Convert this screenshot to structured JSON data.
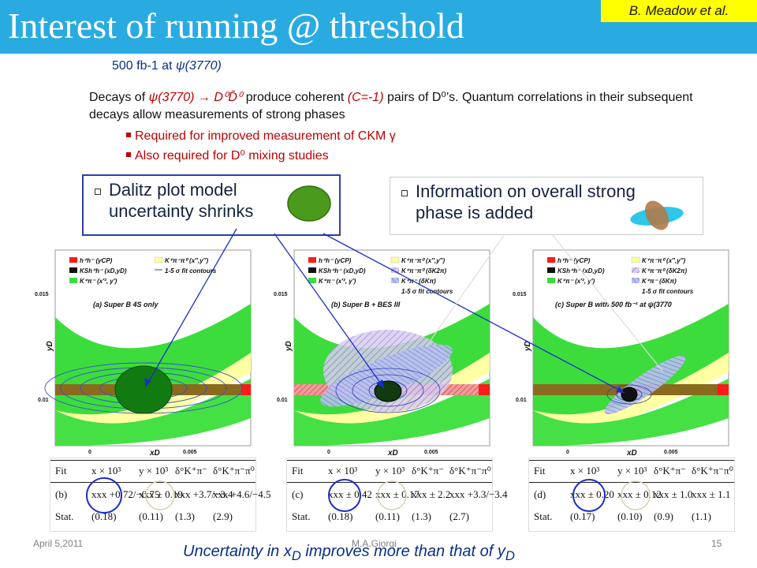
{
  "header": {
    "title": "Interest of running @ threshold",
    "author": "B. Meadow et al."
  },
  "luminosity": {
    "prefix": "500 fb-1 at ",
    "psi": "ψ",
    "state": "(3770)"
  },
  "intro": {
    "p1": "Decays of ",
    "psi": "ψ(3770)",
    "arrow": " → D⁰D̄⁰",
    "p2": " produce coherent ",
    "c": "(C=-1)",
    "p3": " pairs of D⁰’s. Quantum correlations in their subsequent decays allow measurements of strong phases",
    "bullet1": "Required for improved measurement of CKM γ",
    "bullet2": "Also required for D⁰ mixing studies"
  },
  "callouts": {
    "left": {
      "line1": "Dalitz plot model",
      "line2": "uncertainty shrinks"
    },
    "right": {
      "line1": "Information on overall strong",
      "line2": "phase is added"
    }
  },
  "plots": [
    {
      "caption": "(a)  Super B 4S only",
      "ylabel": "yD",
      "xlabel": "xD",
      "ytick_top": "0.015",
      "ytick_mid": "0.01",
      "xtick0": "0",
      "xtick1": "0.005",
      "legend": [
        "h⁺h⁻     (yCP)",
        "KSh⁺h⁻  (xD,yD)",
        "K⁺π⁻   (x′², y′)",
        "K⁺π⁻π⁰ (x″,y″)",
        "1-5 σ fit contours"
      ]
    },
    {
      "caption": "(b)  Super B + BES III",
      "ylabel": "yD",
      "xlabel": "xD",
      "ytick_top": "0.015",
      "ytick_mid": "0.01",
      "xtick0": "0",
      "xtick1": "0.005",
      "legend": [
        "h⁺h⁻     (yCP)",
        "KSh⁺h⁻  (xD,yD)",
        "K⁺π⁻   (x′², y′)",
        "K⁺π⁻π⁰ (x″,y″)",
        "K⁺π⁻π⁰ (δK2π)",
        "K⁺π⁻   (δKπ)",
        "1-5 σ fit contours"
      ]
    },
    {
      "caption": "(c)  Super B with 500 fb⁻¹ at ψ(3770",
      "ylabel": "yD",
      "xlabel": "xD",
      "ytick_top": "0.015",
      "ytick_mid": "0.01",
      "xtick0": "0",
      "xtick1": "0.005",
      "legend": [
        "h⁺h⁻     (yCP)",
        "KSh⁺h⁻  (xD,yD)",
        "K⁺π⁻   (x′², y′)",
        "K⁺π⁻π⁰ (x″,y″)",
        "K⁺π⁻π⁰ (δK2π)",
        "K⁺π⁻   (δKπ)",
        "1-5 σ fit contours"
      ]
    }
  ],
  "tables": [
    {
      "head": [
        "Fit",
        "x × 10³",
        "y × 10³",
        "δ°K⁺π⁻",
        "δ°K⁺π⁻π⁰"
      ],
      "row1": [
        "(b)",
        "xxx +0.72/−0.75",
        "xxx ± 0.19",
        "xxx +3.7/−3.4",
        "xxx +4.6/−4.5"
      ],
      "row2": [
        "Stat.",
        "(0.18)",
        "(0.11)",
        "(1.3)",
        "(2.9)"
      ]
    },
    {
      "head": [
        "Fit",
        "x × 10³",
        "y × 10³",
        "δ°K⁺π⁻",
        "δ°K⁺π⁻π⁰"
      ],
      "row1": [
        "(c)",
        "xxx ± 0.42",
        "xxx ± 0.17",
        "xxx ± 2.2",
        "xxx +3.3/−3.4"
      ],
      "row2": [
        "Stat.",
        "(0.18)",
        "(0.11)",
        "(1.3)",
        "(2.7)"
      ]
    },
    {
      "head": [
        "Fit",
        "x × 10³",
        "y × 10³",
        "δ°K⁺π⁻",
        "δ°K⁺π⁻π⁰"
      ],
      "row1": [
        "(d)",
        "xxx ± 0.20",
        "xxx ± 0.12",
        "xxx ± 1.0",
        "xxx ± 1.1"
      ],
      "row2": [
        "Stat.",
        "(0.17)",
        "(0.10)",
        "(0.9)",
        "(1.1)"
      ]
    }
  ],
  "footer": {
    "date": "April 5,2011",
    "presenter": "M.A.Giorgi",
    "page": "15"
  },
  "conclusion": {
    "p1": "Uncertainty in x",
    "sub1": "D",
    "p2": " improves more than that of y",
    "sub2": "D"
  },
  "colors": {
    "header": "#29abe2",
    "author_bg": "#ffff00",
    "text_red": "#c00000",
    "text_blue": "#0b2f86"
  }
}
